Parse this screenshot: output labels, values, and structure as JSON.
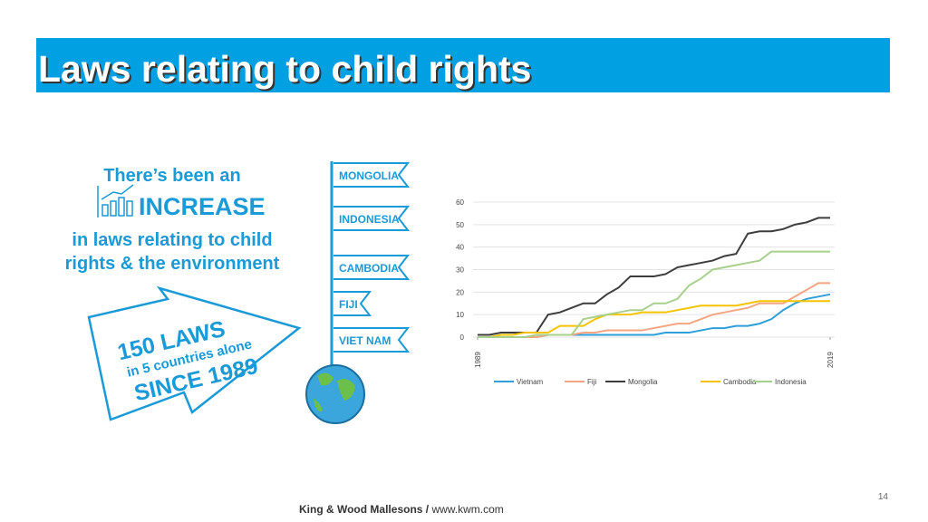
{
  "header": {
    "title": "Laws relating to child rights"
  },
  "infographic": {
    "lines": [
      "There’s been an",
      "INCREASE",
      "in laws relating to child",
      "rights & the environment"
    ],
    "arrow": [
      "150 LAWS",
      "in 5 countries alone",
      "SINCE 1989"
    ],
    "flags": [
      "MONGOLIA",
      "INDONESIA",
      "CAMBODIA",
      "FIJI",
      "VIET NAM"
    ]
  },
  "chart_data": {
    "type": "line",
    "x": [
      1989,
      1990,
      1991,
      1992,
      1993,
      1994,
      1995,
      1996,
      1997,
      1998,
      1999,
      2000,
      2001,
      2002,
      2003,
      2004,
      2005,
      2006,
      2007,
      2008,
      2009,
      2010,
      2011,
      2012,
      2013,
      2014,
      2015,
      2016,
      2017,
      2018,
      2019
    ],
    "xlim": [
      1989,
      2019
    ],
    "xticks": [
      1989,
      2019
    ],
    "ylim": [
      0,
      60
    ],
    "yticks": [
      0,
      10,
      20,
      30,
      40,
      50,
      60
    ],
    "grid": true,
    "legend": "bottom",
    "series": [
      {
        "name": "Vietnam",
        "color": "#2e9fd8",
        "values": [
          0,
          0,
          0,
          0,
          0,
          0,
          1,
          1,
          1,
          1,
          1,
          1,
          1,
          1,
          1,
          1,
          2,
          2,
          2,
          3,
          4,
          4,
          5,
          5,
          6,
          8,
          12,
          15,
          17,
          18,
          19
        ]
      },
      {
        "name": "Fiji",
        "color": "#f4a582",
        "values": [
          0,
          0,
          0,
          0,
          0,
          0,
          1,
          1,
          1,
          2,
          2,
          3,
          3,
          3,
          3,
          4,
          5,
          6,
          6,
          8,
          10,
          11,
          12,
          13,
          15,
          15,
          15,
          18,
          21,
          24,
          24
        ]
      },
      {
        "name": "Mongolia",
        "color": "#3d3d3d",
        "values": [
          1,
          1,
          2,
          2,
          2,
          2,
          10,
          11,
          13,
          15,
          15,
          19,
          22,
          27,
          27,
          27,
          28,
          31,
          32,
          33,
          34,
          36,
          37,
          46,
          47,
          47,
          48,
          50,
          51,
          53,
          53
        ]
      },
      {
        "name": "Cambodia",
        "color": "#f5c400",
        "values": [
          0,
          0,
          1,
          1,
          2,
          2,
          2,
          5,
          5,
          5,
          8,
          10,
          10,
          10,
          11,
          11,
          11,
          12,
          13,
          14,
          14,
          14,
          14,
          15,
          16,
          16,
          16,
          16,
          16,
          16,
          16
        ]
      },
      {
        "name": "Indonesia",
        "color": "#a8d08d",
        "values": [
          0,
          0,
          0,
          0,
          0,
          1,
          1,
          1,
          1,
          8,
          9,
          10,
          11,
          12,
          12,
          15,
          15,
          17,
          23,
          26,
          30,
          31,
          32,
          33,
          34,
          38,
          38,
          38,
          38,
          38,
          38
        ]
      }
    ]
  },
  "footer": {
    "company": "King & Wood Mallesons /",
    "url": " www.kwm.com",
    "page": "14"
  }
}
